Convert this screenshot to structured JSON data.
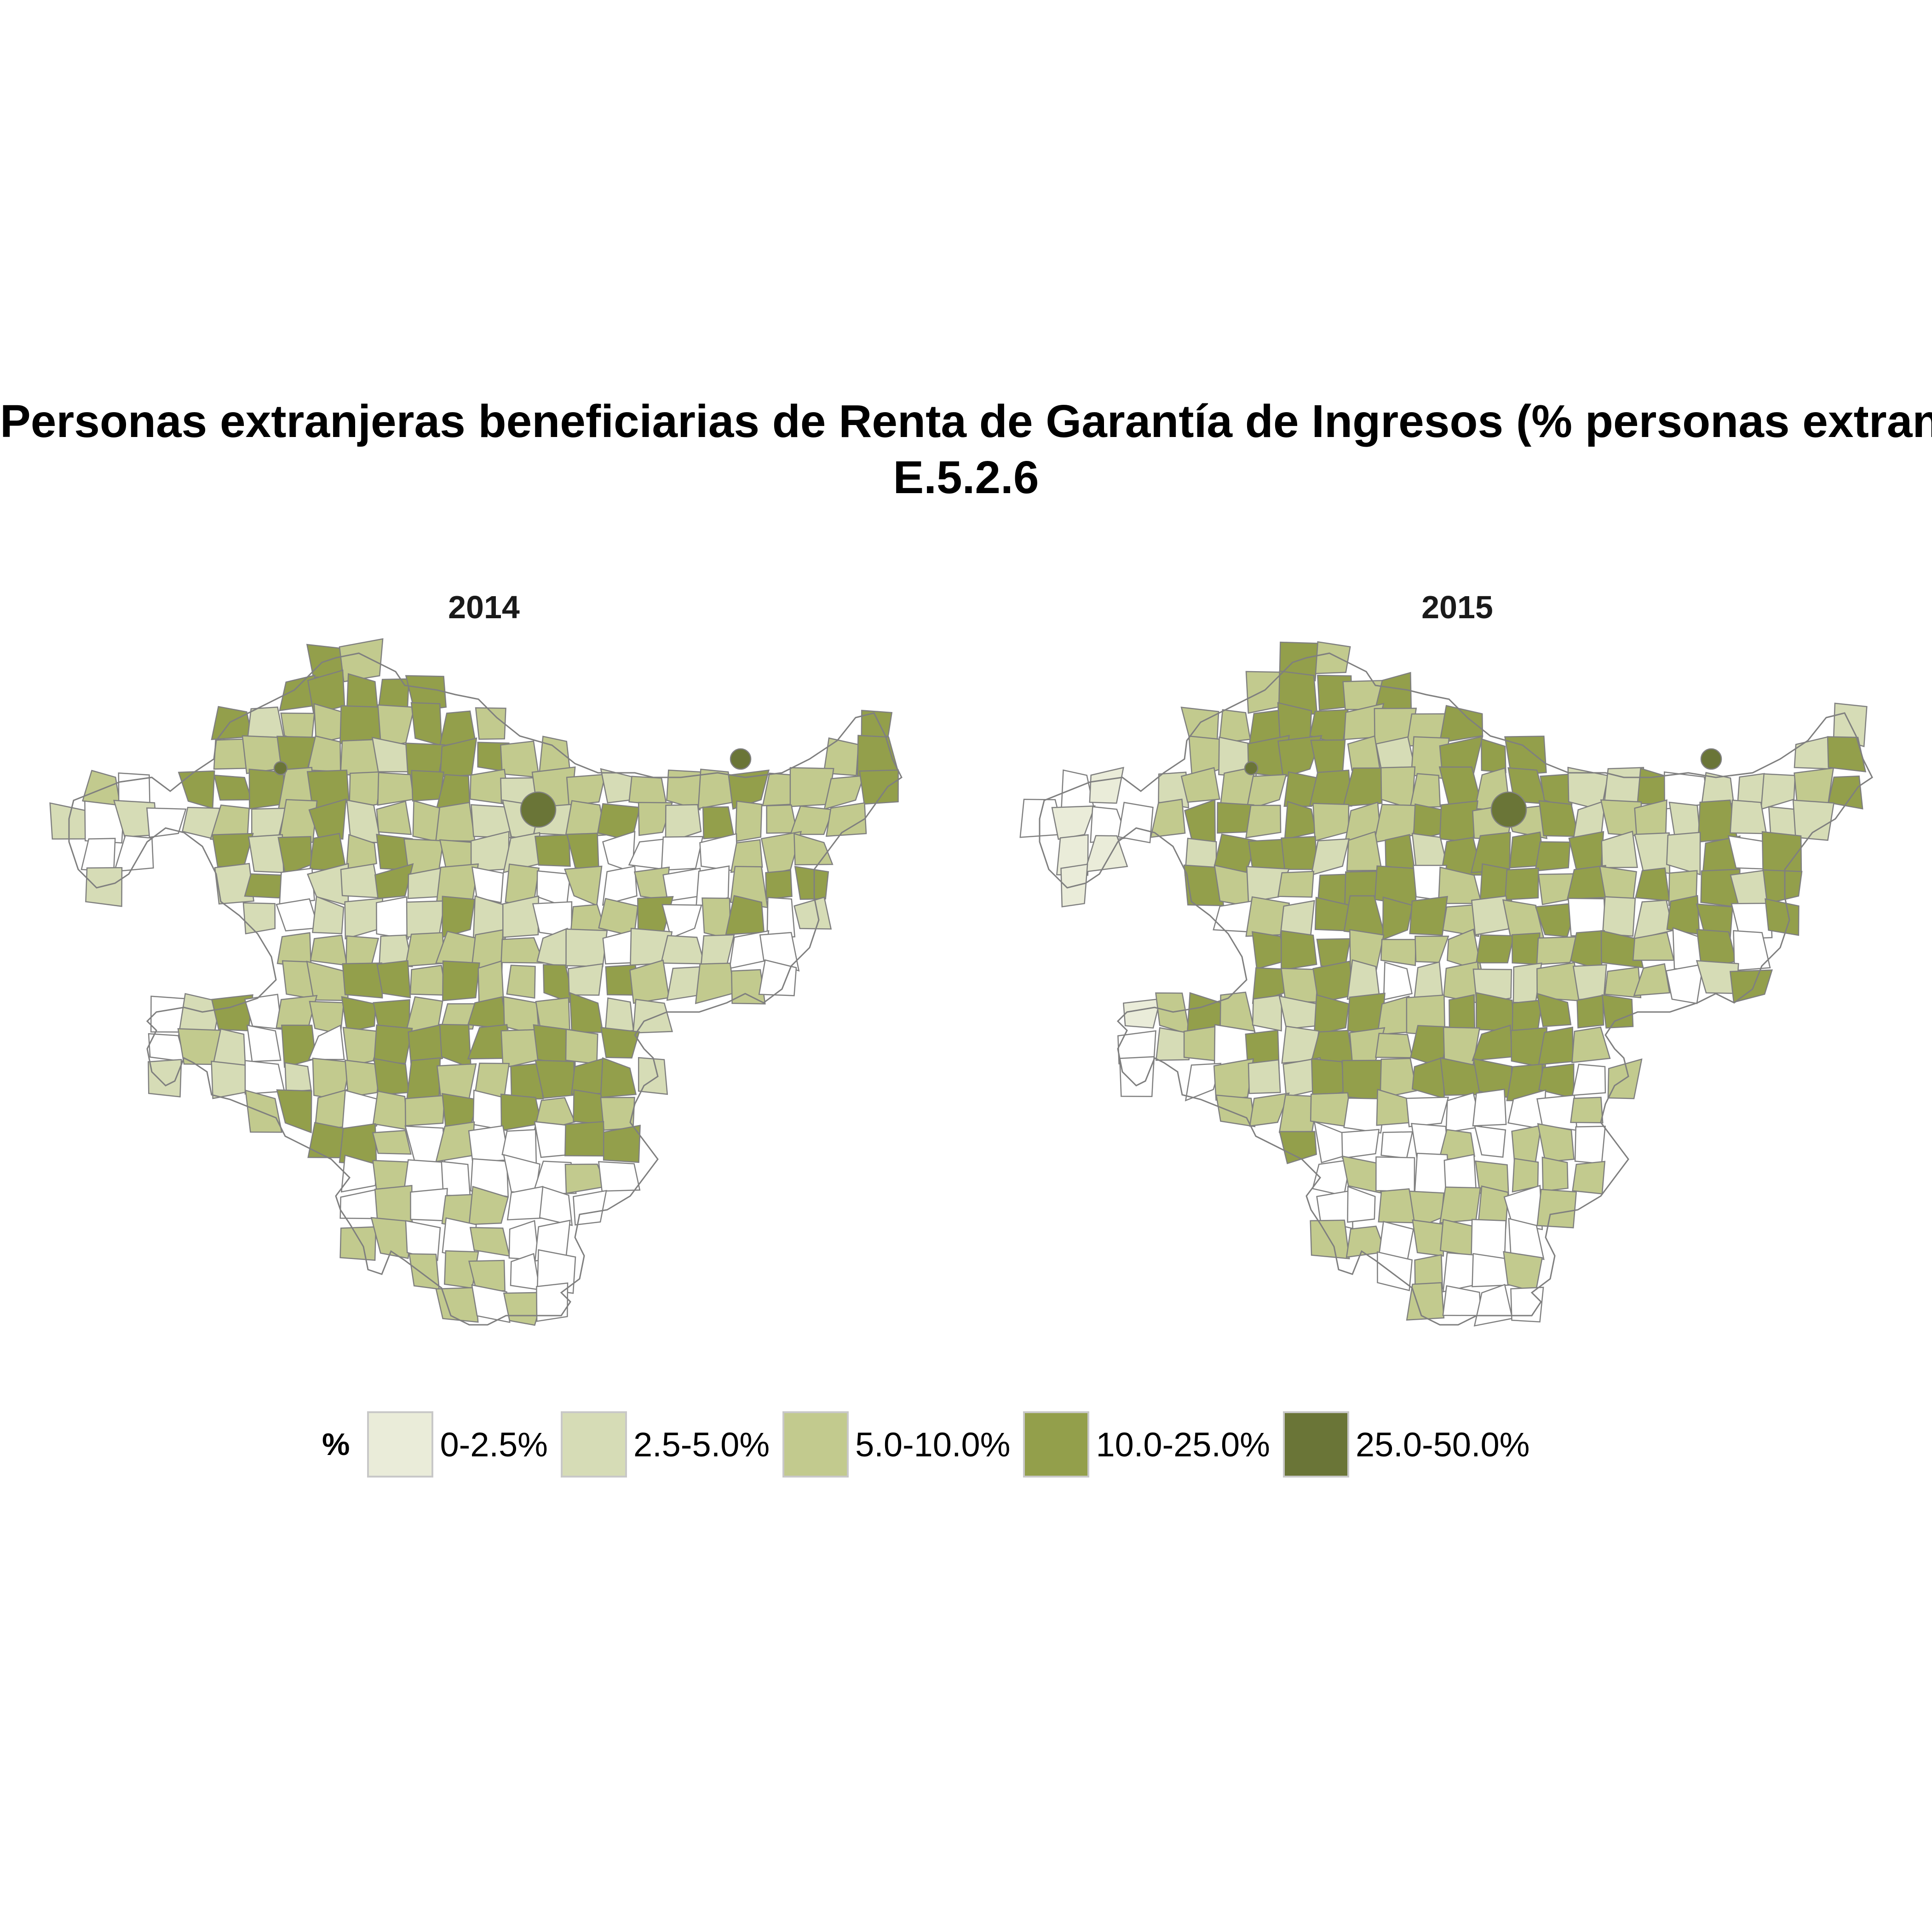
{
  "title": {
    "line1": "Personas extranjeras beneficiarias de Renta de Garantía de Ingresos (% personas extranjeras)",
    "line2": "E.5.2.6"
  },
  "panels": [
    {
      "label": "2014"
    },
    {
      "label": "2015"
    }
  ],
  "legend": {
    "title": "%",
    "items": [
      {
        "label": "0-2.5%",
        "color": "#eaecd9"
      },
      {
        "label": "2.5-5.0%",
        "color": "#d6dcb6"
      },
      {
        "label": "5.0-10.0%",
        "color": "#c2ca8e"
      },
      {
        "label": "10.0-25.0%",
        "color": "#939f4b"
      },
      {
        "label": "25.0-50.0%",
        "color": "#6a7537"
      }
    ]
  },
  "colors": {
    "border": "#7f7f7f",
    "no_data": "#ffffff"
  }
}
